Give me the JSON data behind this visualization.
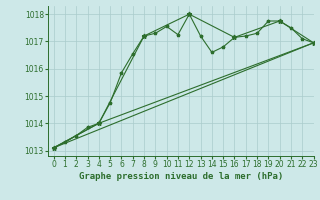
{
  "title": "Graphe pression niveau de la mer (hPa)",
  "xlim": [
    -0.5,
    23
  ],
  "ylim": [
    1012.8,
    1018.3
  ],
  "yticks": [
    1013,
    1014,
    1015,
    1016,
    1017,
    1018
  ],
  "xticks": [
    0,
    1,
    2,
    3,
    4,
    5,
    6,
    7,
    8,
    9,
    10,
    11,
    12,
    13,
    14,
    15,
    16,
    17,
    18,
    19,
    20,
    21,
    22,
    23
  ],
  "bg_color": "#cde8e8",
  "line_color": "#2d6e2d",
  "grid_color": "#aacccc",
  "series_main": {
    "x": [
      0,
      1,
      2,
      3,
      4,
      5,
      6,
      7,
      8,
      9,
      10,
      11,
      12,
      13,
      14,
      15,
      16,
      17,
      18,
      19,
      20,
      21,
      22,
      23
    ],
    "y": [
      1013.1,
      1013.3,
      1013.55,
      1013.85,
      1014.0,
      1014.75,
      1015.85,
      1016.55,
      1017.2,
      1017.3,
      1017.55,
      1017.25,
      1018.0,
      1017.2,
      1016.6,
      1016.8,
      1017.15,
      1017.2,
      1017.3,
      1017.75,
      1017.75,
      1017.5,
      1017.1,
      1016.95
    ]
  },
  "series_sparse": {
    "x": [
      0,
      4,
      8,
      12,
      16,
      20,
      23
    ],
    "y": [
      1013.1,
      1014.0,
      1017.2,
      1018.0,
      1017.15,
      1017.75,
      1016.95
    ]
  },
  "series_line1": {
    "x": [
      0,
      23
    ],
    "y": [
      1013.1,
      1016.95
    ]
  },
  "series_line2": {
    "x": [
      0,
      4,
      23
    ],
    "y": [
      1013.1,
      1014.0,
      1016.95
    ]
  },
  "title_fontsize": 6.5,
  "tick_fontsize": 5.5
}
